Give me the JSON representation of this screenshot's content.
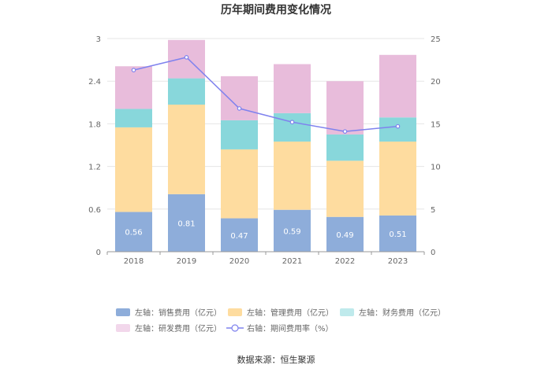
{
  "chart_data": {
    "type": "bar",
    "title": "历年期间费用变化情况",
    "categories": [
      "2018",
      "2019",
      "2020",
      "2021",
      "2022",
      "2023"
    ],
    "left_axis": {
      "min": 0,
      "max": 3,
      "ticks": [
        "0",
        "0.6",
        "1.2",
        "1.8",
        "2.4",
        "3"
      ]
    },
    "right_axis": {
      "min": 0,
      "max": 25,
      "ticks": [
        "0",
        "5",
        "10",
        "15",
        "20",
        "25"
      ]
    },
    "series": [
      {
        "name": "左轴：销售费用（亿元）",
        "type": "bar",
        "color": "#8eadda",
        "values": [
          0.56,
          0.81,
          0.47,
          0.59,
          0.49,
          0.51
        ],
        "labels": [
          "0.56",
          "0.81",
          "0.47",
          "0.59",
          "0.49",
          "0.51"
        ]
      },
      {
        "name": "左轴：管理费用（亿元）",
        "type": "bar",
        "color": "#fedc9f",
        "values": [
          1.19,
          1.26,
          0.97,
          0.96,
          0.79,
          1.04
        ]
      },
      {
        "name": "左轴：财务费用（亿元）",
        "type": "bar",
        "color": "#88d7db",
        "values": [
          0.26,
          0.37,
          0.41,
          0.4,
          0.37,
          0.34
        ]
      },
      {
        "name": "左轴：研发费用（亿元）",
        "type": "bar",
        "color": "#e8bcdb",
        "values": [
          0.6,
          0.54,
          0.62,
          0.69,
          0.75,
          0.88
        ]
      },
      {
        "name": "右轴：期间费用率（%）",
        "type": "line",
        "color": "#7f82ee",
        "values": [
          21.3,
          22.8,
          16.8,
          15.2,
          14.1,
          14.7
        ]
      }
    ],
    "legend": [
      {
        "label": "左轴：销售费用（亿元）",
        "shape": "rect",
        "color": "#8eadda"
      },
      {
        "label": "左轴：管理费用（亿元）",
        "shape": "rect",
        "color": "#fedc9f"
      },
      {
        "label": "左轴：财务费用（亿元）",
        "shape": "rect",
        "color": "#bfeaec"
      },
      {
        "label": "左轴：研发费用（亿元）",
        "shape": "rect",
        "color": "#f2d7eb"
      },
      {
        "label": "右轴：期间费用率（%）",
        "shape": "line",
        "color": "#7f82ee"
      }
    ],
    "legend_position": "bottom",
    "source": "数据来源：恒生聚源"
  }
}
